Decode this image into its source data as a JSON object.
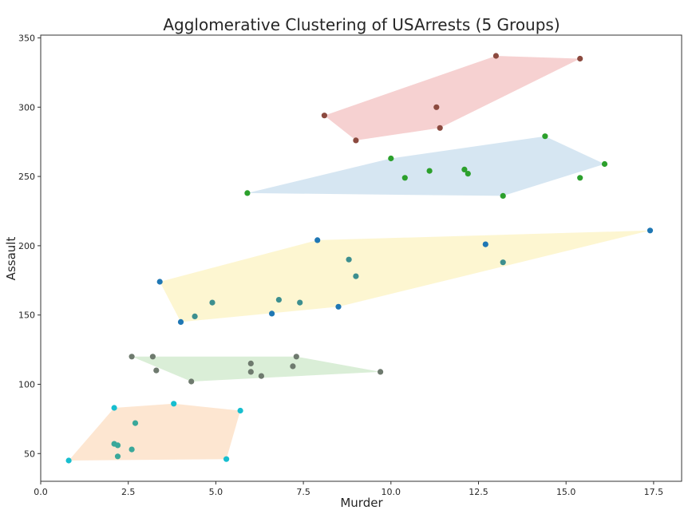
{
  "chart_data": {
    "type": "scatter",
    "title": "Agglomerative Clustering of USArrests (5 Groups)",
    "xlabel": "Murder",
    "ylabel": "Assault",
    "xlim": [
      0,
      18.3
    ],
    "ylim": [
      30,
      352
    ],
    "grid": false,
    "x_ticks": [
      0.0,
      2.5,
      5.0,
      7.5,
      10.0,
      12.5,
      15.0,
      17.5
    ],
    "x_tick_labels": [
      "0.0",
      "2.5",
      "5.0",
      "7.5",
      "10.0",
      "12.5",
      "15.0",
      "17.5"
    ],
    "y_ticks": [
      50,
      100,
      150,
      200,
      250,
      300,
      350
    ],
    "y_tick_labels": [
      "50",
      "100",
      "150",
      "200",
      "250",
      "300",
      "350"
    ],
    "hulls": [
      {
        "color": "#f4c9c9",
        "points": [
          [
            8.1,
            294
          ],
          [
            9.0,
            276
          ],
          [
            11.4,
            285
          ],
          [
            15.4,
            335
          ],
          [
            13.0,
            337
          ]
        ]
      },
      {
        "color": "#cfe2f0",
        "points": [
          [
            5.9,
            238
          ],
          [
            13.2,
            236
          ],
          [
            16.1,
            259
          ],
          [
            14.4,
            279
          ],
          [
            10.0,
            263
          ]
        ]
      },
      {
        "color": "#fdf4c9",
        "points": [
          [
            3.4,
            174
          ],
          [
            4.0,
            145
          ],
          [
            8.5,
            156
          ],
          [
            17.4,
            211
          ],
          [
            7.9,
            204
          ]
        ]
      },
      {
        "color": "#d4ebd0",
        "points": [
          [
            2.6,
            120
          ],
          [
            4.3,
            102
          ],
          [
            9.7,
            109
          ],
          [
            7.3,
            120
          ]
        ]
      },
      {
        "color": "#fde2c9",
        "points": [
          [
            0.8,
            45
          ],
          [
            5.3,
            46
          ],
          [
            5.7,
            81
          ],
          [
            3.8,
            86
          ],
          [
            2.1,
            83
          ]
        ]
      }
    ],
    "series": [
      {
        "color": "#8c4a3f",
        "points": [
          [
            8.1,
            294
          ],
          [
            9.0,
            276
          ],
          [
            11.3,
            300
          ],
          [
            11.4,
            285
          ],
          [
            13.0,
            337
          ],
          [
            15.4,
            335
          ]
        ]
      },
      {
        "color": "#2ca02c",
        "points": [
          [
            5.9,
            238
          ],
          [
            10.0,
            263
          ],
          [
            10.4,
            249
          ],
          [
            11.1,
            254
          ],
          [
            12.1,
            255
          ],
          [
            12.2,
            252
          ],
          [
            13.2,
            236
          ],
          [
            14.4,
            279
          ],
          [
            15.4,
            249
          ],
          [
            16.1,
            259
          ]
        ]
      },
      {
        "color": "#1f77b4",
        "points": [
          [
            3.4,
            174
          ],
          [
            4.0,
            145
          ],
          [
            6.6,
            151
          ],
          [
            7.9,
            204
          ],
          [
            8.5,
            156
          ],
          [
            12.7,
            201
          ],
          [
            17.4,
            211
          ]
        ]
      },
      {
        "color": "#3d8f8f",
        "points": [
          [
            4.4,
            149
          ],
          [
            4.9,
            159
          ],
          [
            6.8,
            161
          ],
          [
            7.4,
            159
          ],
          [
            8.8,
            190
          ],
          [
            9.0,
            178
          ],
          [
            13.2,
            188
          ]
        ]
      },
      {
        "color": "#6e7a6e",
        "points": [
          [
            2.6,
            120
          ],
          [
            3.2,
            120
          ],
          [
            3.3,
            110
          ],
          [
            4.3,
            102
          ],
          [
            6.0,
            115
          ],
          [
            6.0,
            109
          ],
          [
            6.3,
            106
          ],
          [
            7.2,
            113
          ],
          [
            7.3,
            120
          ],
          [
            9.7,
            109
          ]
        ]
      },
      {
        "color": "#17becf",
        "points": [
          [
            0.8,
            45
          ],
          [
            2.1,
            83
          ],
          [
            3.8,
            86
          ],
          [
            5.3,
            46
          ],
          [
            5.7,
            81
          ]
        ]
      },
      {
        "color": "#3aa89a",
        "points": [
          [
            2.1,
            57
          ],
          [
            2.2,
            56
          ],
          [
            2.2,
            48
          ],
          [
            2.6,
            53
          ],
          [
            2.7,
            72
          ]
        ]
      }
    ]
  }
}
